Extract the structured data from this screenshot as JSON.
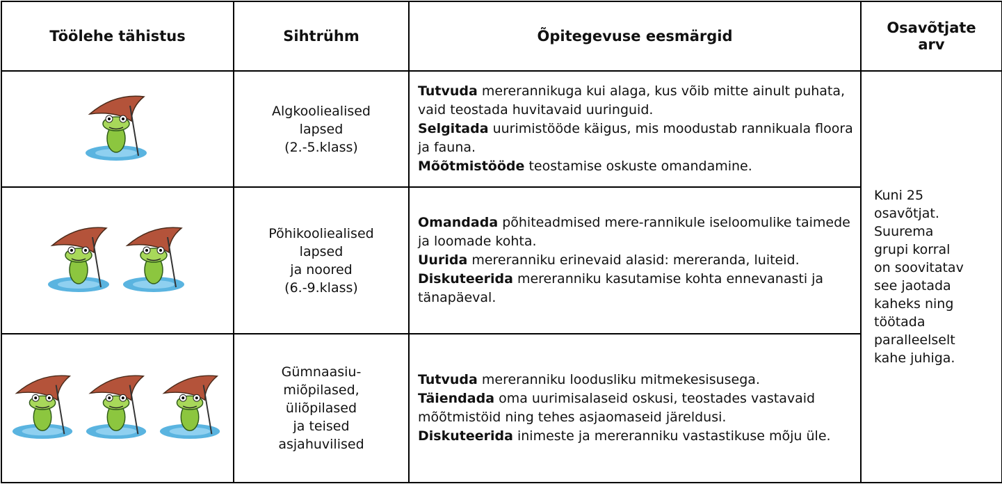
{
  "table": {
    "headers": [
      "Töölehe tähistus",
      "Sihtrühm",
      "Õpitegevuse eesmärgid",
      "Osavõtjate arv"
    ],
    "rows": [
      {
        "target": [
          "Algkooliealised",
          "lapsed",
          "(2.-5.klass)"
        ],
        "goals": [
          {
            "verb": "Tutvuda",
            "text": "mererannikuga kui alaga, kus võib mitte ainult puhata, vaid teostada huvitavaid uuringuid."
          },
          {
            "verb": "Selgitada",
            "text": "uurimistööde käigus, mis moodustab rannikuala floora ja fauna."
          },
          {
            "verb": "Mõõtmistööde",
            "text": "teostamise oskuste omandamine."
          }
        ]
      },
      {
        "target": [
          "Põhikooliealised",
          "lapsed",
          "ja noored",
          "(6.-9.klass)"
        ],
        "goals": [
          {
            "verb": "Omandada",
            "text": "põhiteadmised mere-rannikule iseloomulike taimede ja loomade kohta."
          },
          {
            "verb": "Uurida",
            "text": "mereranniku erinevaid alasid: mereranda, luiteid."
          },
          {
            "verb": "Diskuteerida",
            "text": "mereranniku kasutamise kohta ennevanasti ja tänapäeval."
          }
        ]
      },
      {
        "target": [
          "Gümnaasiu-",
          "miõpilased,",
          "üliõpilased",
          "ja teised",
          "asjahuvilised"
        ],
        "goals": [
          {
            "verb": "Tutvuda",
            "text": "mereranniku loodusliku mitmekesisusega."
          },
          {
            "verb": "Täiendada",
            "text": "oma uurimisalaseid oskusi, teostades vastavaid mõõtmistöid ning tehes asjaomaseid järeldusi."
          },
          {
            "verb": "Diskuteerida",
            "text": "inimeste ja mereranniku vastastikuse mõju üle."
          }
        ]
      }
    ],
    "participants": [
      "Kuni 25",
      "osavõtjat.",
      "Suurema",
      "grupi korral",
      "on soovitatav",
      "see jaotada",
      "kaheks ning",
      "töötada",
      "paralleelselt",
      "kahe juhiga."
    ]
  }
}
